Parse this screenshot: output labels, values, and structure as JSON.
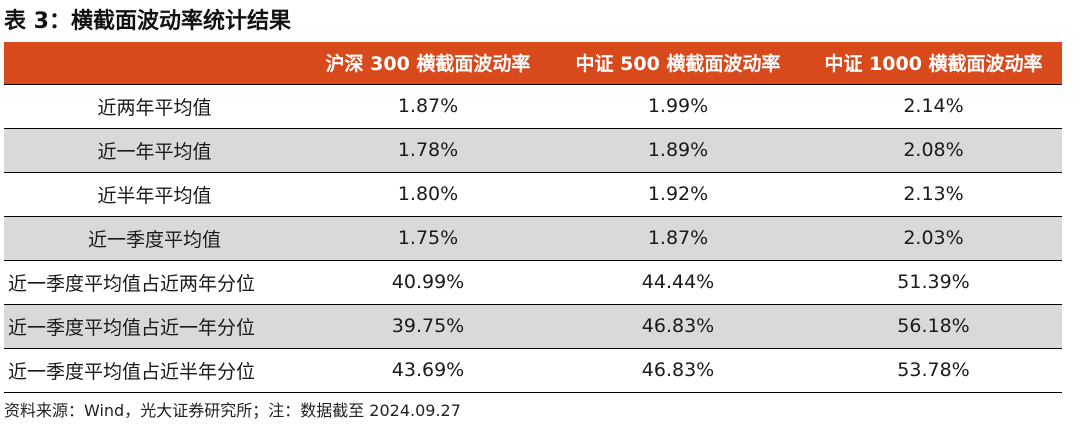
{
  "title": "表 3：横截面波动率统计结果",
  "table": {
    "headers": [
      "",
      "沪深 300 横截面波动率",
      "中证 500 横截面波动率",
      "中证 1000 横截面波动率"
    ],
    "rows": [
      {
        "label": "近两年平均值",
        "values": [
          "1.87%",
          "1.99%",
          "2.14%"
        ]
      },
      {
        "label": "近一年平均值",
        "values": [
          "1.78%",
          "1.89%",
          "2.08%"
        ]
      },
      {
        "label": "近半年平均值",
        "values": [
          "1.80%",
          "1.92%",
          "2.13%"
        ]
      },
      {
        "label": "近一季度平均值",
        "values": [
          "1.75%",
          "1.87%",
          "2.03%"
        ]
      },
      {
        "label": "近一季度平均值占近两年分位",
        "values": [
          "40.99%",
          "44.44%",
          "51.39%"
        ]
      },
      {
        "label": "近一季度平均值占近一年分位",
        "values": [
          "39.75%",
          "46.83%",
          "56.18%"
        ]
      },
      {
        "label": "近一季度平均值占近半年分位",
        "values": [
          "43.69%",
          "46.83%",
          "53.78%"
        ]
      }
    ]
  },
  "source": "资料来源：Wind，光大证券研究所；注：数据截至 2024.09.27",
  "colors": {
    "header_bg": "#d84a1c",
    "shaded_row": "#d9d9d9"
  }
}
